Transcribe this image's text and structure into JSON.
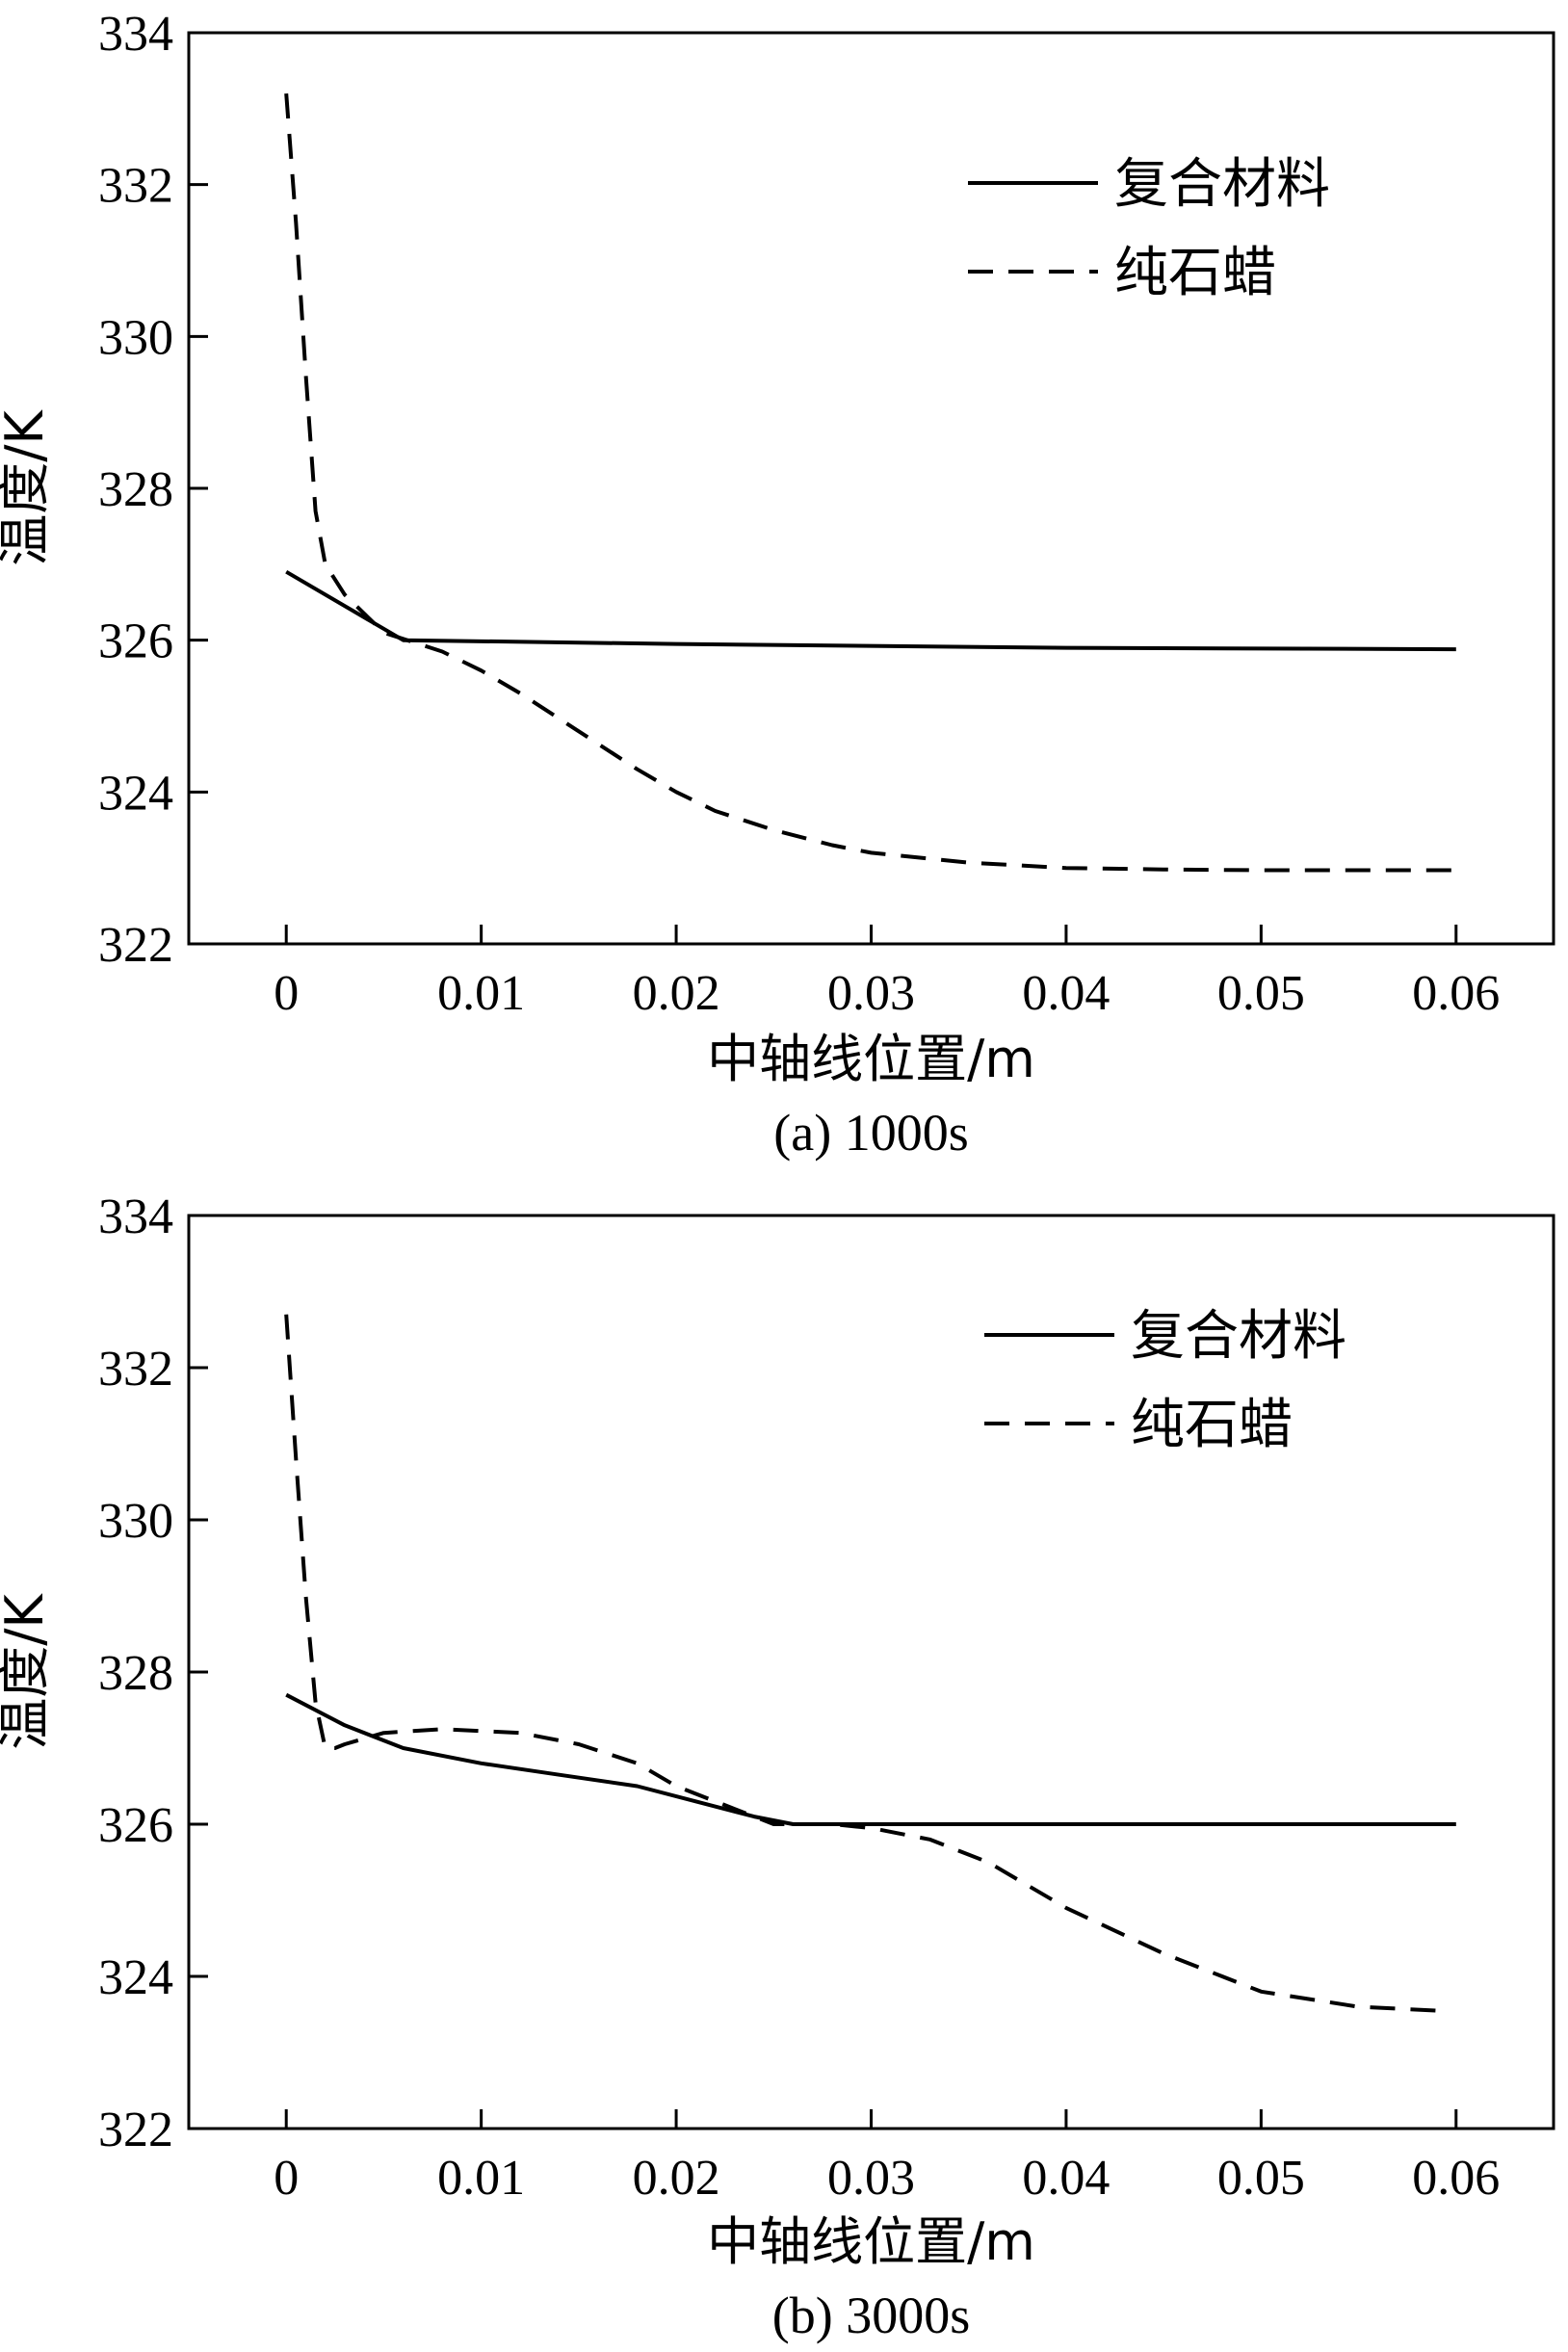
{
  "chart_data": [
    {
      "type": "line",
      "caption": "(a) 1000s",
      "xlabel": "中轴线位置/m",
      "ylabel": "温度/K",
      "xlim": [
        -0.005,
        0.065
      ],
      "ylim": [
        322,
        334
      ],
      "xticks": [
        0,
        0.01,
        0.02,
        0.03,
        0.04,
        0.05,
        0.06
      ],
      "xtick_labels": [
        "0",
        "0.01",
        "0.02",
        "0.03",
        "0.04",
        "0.05",
        "0.06"
      ],
      "yticks": [
        322,
        324,
        326,
        328,
        330,
        332,
        334
      ],
      "ytick_labels": [
        "322",
        "324",
        "326",
        "328",
        "330",
        "332",
        "334"
      ],
      "grid": false,
      "legend_position": "top-right",
      "series": [
        {
          "name": "复合材料",
          "style": "solid",
          "x": [
            0,
            0.006,
            0.02,
            0.04,
            0.06
          ],
          "y": [
            326.9,
            326.0,
            325.95,
            325.9,
            325.88
          ]
        },
        {
          "name": "纯石蜡",
          "style": "dashed",
          "x": [
            0,
            0.0005,
            0.001,
            0.0015,
            0.002,
            0.003,
            0.005,
            0.008,
            0.01,
            0.012,
            0.015,
            0.018,
            0.02,
            0.022,
            0.025,
            0.028,
            0.03,
            0.035,
            0.04,
            0.045,
            0.05,
            0.055,
            0.06
          ],
          "y": [
            333.2,
            331.5,
            329.5,
            327.7,
            327.0,
            326.6,
            326.1,
            325.85,
            325.6,
            325.3,
            324.8,
            324.3,
            324.0,
            323.75,
            323.5,
            323.3,
            323.2,
            323.07,
            323.0,
            322.98,
            322.97,
            322.97,
            322.97
          ]
        }
      ]
    },
    {
      "type": "line",
      "caption": "(b) 3000s",
      "xlabel": "中轴线位置/m",
      "ylabel": "温度/K",
      "xlim": [
        -0.005,
        0.065
      ],
      "ylim": [
        322,
        334
      ],
      "xticks": [
        0,
        0.01,
        0.02,
        0.03,
        0.04,
        0.05,
        0.06
      ],
      "xtick_labels": [
        "0",
        "0.01",
        "0.02",
        "0.03",
        "0.04",
        "0.05",
        "0.06"
      ],
      "yticks": [
        322,
        324,
        326,
        328,
        330,
        332,
        334
      ],
      "ytick_labels": [
        "322",
        "324",
        "326",
        "328",
        "330",
        "332",
        "334"
      ],
      "grid": false,
      "legend_position": "top-right",
      "series": [
        {
          "name": "复合材料",
          "style": "solid",
          "x": [
            0,
            0.003,
            0.006,
            0.01,
            0.014,
            0.018,
            0.021,
            0.024,
            0.026,
            0.03,
            0.04,
            0.05,
            0.06
          ],
          "y": [
            327.7,
            327.3,
            327.0,
            326.8,
            326.65,
            326.5,
            326.3,
            326.1,
            326.0,
            326.0,
            326.0,
            326.0,
            326.0
          ],
          "_note": ""
        },
        {
          "name": "纯石蜡",
          "style": "dashed",
          "x": [
            0,
            0.0005,
            0.001,
            0.0015,
            0.002,
            0.0025,
            0.003,
            0.005,
            0.008,
            0.012,
            0.015,
            0.018,
            0.02,
            0.022,
            0.025,
            0.028,
            0.03,
            0.033,
            0.036,
            0.04,
            0.045,
            0.05,
            0.055,
            0.059
          ],
          "y": [
            332.7,
            330.8,
            329.0,
            327.6,
            327.0,
            327.0,
            327.05,
            327.2,
            327.25,
            327.2,
            327.05,
            326.8,
            326.5,
            326.3,
            326.0,
            326.0,
            325.95,
            325.8,
            325.5,
            324.9,
            324.3,
            323.8,
            323.6,
            323.55
          ]
        }
      ]
    }
  ]
}
